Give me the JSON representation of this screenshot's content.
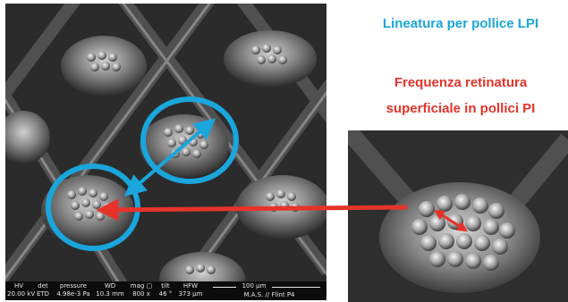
{
  "labels": {
    "lpi": "Lineatura per pollice LPI",
    "freq_line1": "Frequenza retinatura",
    "freq_line2": "superficiale in pollici PI"
  },
  "sem_bar": {
    "hv_label": "HV",
    "hv_value": "20.00 kV",
    "det_label": "det",
    "det_value": "ETD",
    "pressure_label": "pressure",
    "pressure_value": "4.98e-3 Pa",
    "wd_label": "WD",
    "wd_value": "10.3 mm",
    "mag_label": "mag ▢",
    "mag_value": "800 x",
    "tilt_label": "tilt",
    "tilt_value": "46 °",
    "hfw_label": "HFW",
    "hfw_value": "373 µm",
    "scale_value": "100 µm",
    "credit": "M.A.S. // Flint P4"
  },
  "colors": {
    "cyan": "#1aa6dc",
    "red": "#e5332a"
  }
}
